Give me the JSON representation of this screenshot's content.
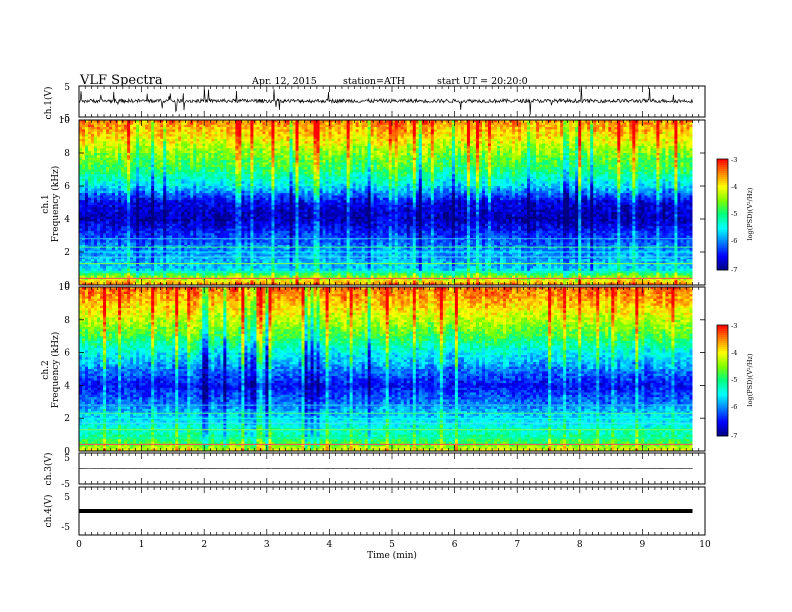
{
  "header": {
    "title": "VLF Spectra",
    "date": "Apr. 12, 2015",
    "station": "station=ATH",
    "start": "start UT = 20:20:0"
  },
  "colors": {
    "trace": "#000000",
    "colormap": [
      "#000080",
      "#0000ff",
      "#0080ff",
      "#00ffff",
      "#00ff80",
      "#80ff00",
      "#ffff00",
      "#ff8000",
      "#ff0000"
    ]
  },
  "chart_data": [
    {
      "type": "line",
      "id": "ch1",
      "ylabel": "ch.1(V)",
      "ylim": [
        -5,
        5
      ],
      "yticks": [
        "5",
        "-5"
      ],
      "xlim": [
        0,
        10
      ],
      "series": [
        {
          "description": "noisy waveform with spikes",
          "baseline": 0.2,
          "spread": 0.6
        }
      ]
    },
    {
      "type": "heatmap",
      "id": "ch1-spec",
      "ylabel": "ch.1\nFrequency (kHz)",
      "ylim": [
        0,
        10
      ],
      "yticks": [
        "0",
        "2",
        "4",
        "6",
        "8",
        "10"
      ],
      "xlim": [
        0,
        10
      ],
      "data_end_min": 9.8,
      "colorbar": {
        "label": "log(PSD)(V²/Hz)",
        "ticks": [
          "-3",
          "-4",
          "-5",
          "-6",
          "-7"
        ],
        "range": [
          -7,
          -3
        ]
      },
      "psd_profile": [
        {
          "khz": 0,
          "log_psd": -3.5
        },
        {
          "khz": 0.5,
          "log_psd": -4.5
        },
        {
          "khz": 1.0,
          "log_psd": -5.7
        },
        {
          "khz": 2.0,
          "log_psd": -5.9
        },
        {
          "khz": 3.0,
          "log_psd": -6.3
        },
        {
          "khz": 4.0,
          "log_psd": -6.8
        },
        {
          "khz": 5.0,
          "log_psd": -6.6
        },
        {
          "khz": 6.0,
          "log_psd": -5.6
        },
        {
          "khz": 7.0,
          "log_psd": -4.9
        },
        {
          "khz": 8.0,
          "log_psd": -4.5
        },
        {
          "khz": 9.0,
          "log_psd": -3.9
        },
        {
          "khz": 10.0,
          "log_psd": -3.5
        }
      ]
    },
    {
      "type": "heatmap",
      "id": "ch2-spec",
      "ylabel": "ch.2\nFrequency (kHz)",
      "ylim": [
        0,
        10
      ],
      "yticks": [
        "0",
        "2",
        "4",
        "6",
        "8",
        "10"
      ],
      "xlim": [
        0,
        10
      ],
      "data_end_min": 9.8,
      "colorbar": {
        "label": "log(PSD)(V²/Hz)",
        "ticks": [
          "-3",
          "-4",
          "-5",
          "-6",
          "-7"
        ],
        "range": [
          -7,
          -3
        ]
      },
      "psd_profile": [
        {
          "khz": 0,
          "log_psd": -4.0
        },
        {
          "khz": 0.5,
          "log_psd": -4.8
        },
        {
          "khz": 1.0,
          "log_psd": -5.2
        },
        {
          "khz": 2.0,
          "log_psd": -5.6
        },
        {
          "khz": 3.0,
          "log_psd": -6.1
        },
        {
          "khz": 4.0,
          "log_psd": -6.5
        },
        {
          "khz": 5.0,
          "log_psd": -6.0
        },
        {
          "khz": 6.0,
          "log_psd": -5.5
        },
        {
          "khz": 7.0,
          "log_psd": -4.8
        },
        {
          "khz": 8.0,
          "log_psd": -4.3
        },
        {
          "khz": 9.0,
          "log_psd": -3.8
        },
        {
          "khz": 10.0,
          "log_psd": -3.4
        }
      ]
    },
    {
      "type": "line",
      "id": "ch3",
      "ylabel": "ch.3(V)",
      "ylim": [
        -5,
        5
      ],
      "yticks": [
        "5",
        "-5"
      ],
      "xlim": [
        0,
        10
      ],
      "series": [
        {
          "description": "near-flat line",
          "baseline": 0,
          "spread": 0.05
        }
      ]
    },
    {
      "type": "line",
      "id": "ch4",
      "ylabel": "ch.4(V)",
      "ylim": [
        -5,
        5
      ],
      "yticks": [
        "5",
        "-5"
      ],
      "xlim": [
        0,
        10
      ],
      "series": [
        {
          "description": "thick constant line",
          "baseline": 0,
          "spread": 0
        }
      ]
    }
  ],
  "xaxis": {
    "label": "Time (min)",
    "ticks": [
      "0",
      "1",
      "2",
      "3",
      "4",
      "5",
      "6",
      "7",
      "8",
      "9",
      "10"
    ]
  }
}
